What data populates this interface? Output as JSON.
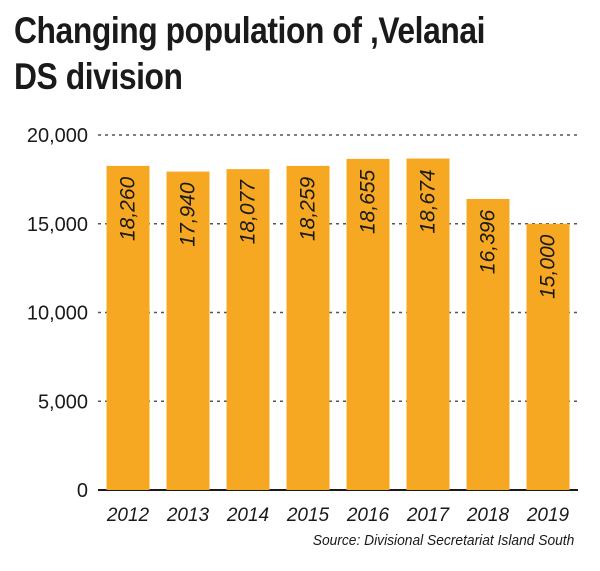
{
  "chart_data": {
    "type": "bar",
    "title": "Changing population of ,Velanai DS division",
    "categories": [
      "2012",
      "2013",
      "2014",
      "2015",
      "2016",
      "2017",
      "2018",
      "2019"
    ],
    "values": [
      18260,
      17940,
      18077,
      18259,
      18655,
      18674,
      16396,
      15000
    ],
    "value_labels": [
      "18,260",
      "17,940",
      "18,077",
      "18,259",
      "18,655",
      "18,674",
      "16,396",
      "15,000"
    ],
    "yticks": [
      0,
      5000,
      10000,
      15000,
      20000
    ],
    "ytick_labels": [
      "0",
      "5,000",
      "10,000",
      "15,000",
      "20,000"
    ],
    "ylim": [
      0,
      20000
    ],
    "grid": true,
    "xlabel": "",
    "ylabel": "",
    "source": "Source: Divisional Secretariat Island South",
    "colors": {
      "bar": "#f7a823",
      "text": "#1a1a1a",
      "grid": "#555555"
    }
  }
}
